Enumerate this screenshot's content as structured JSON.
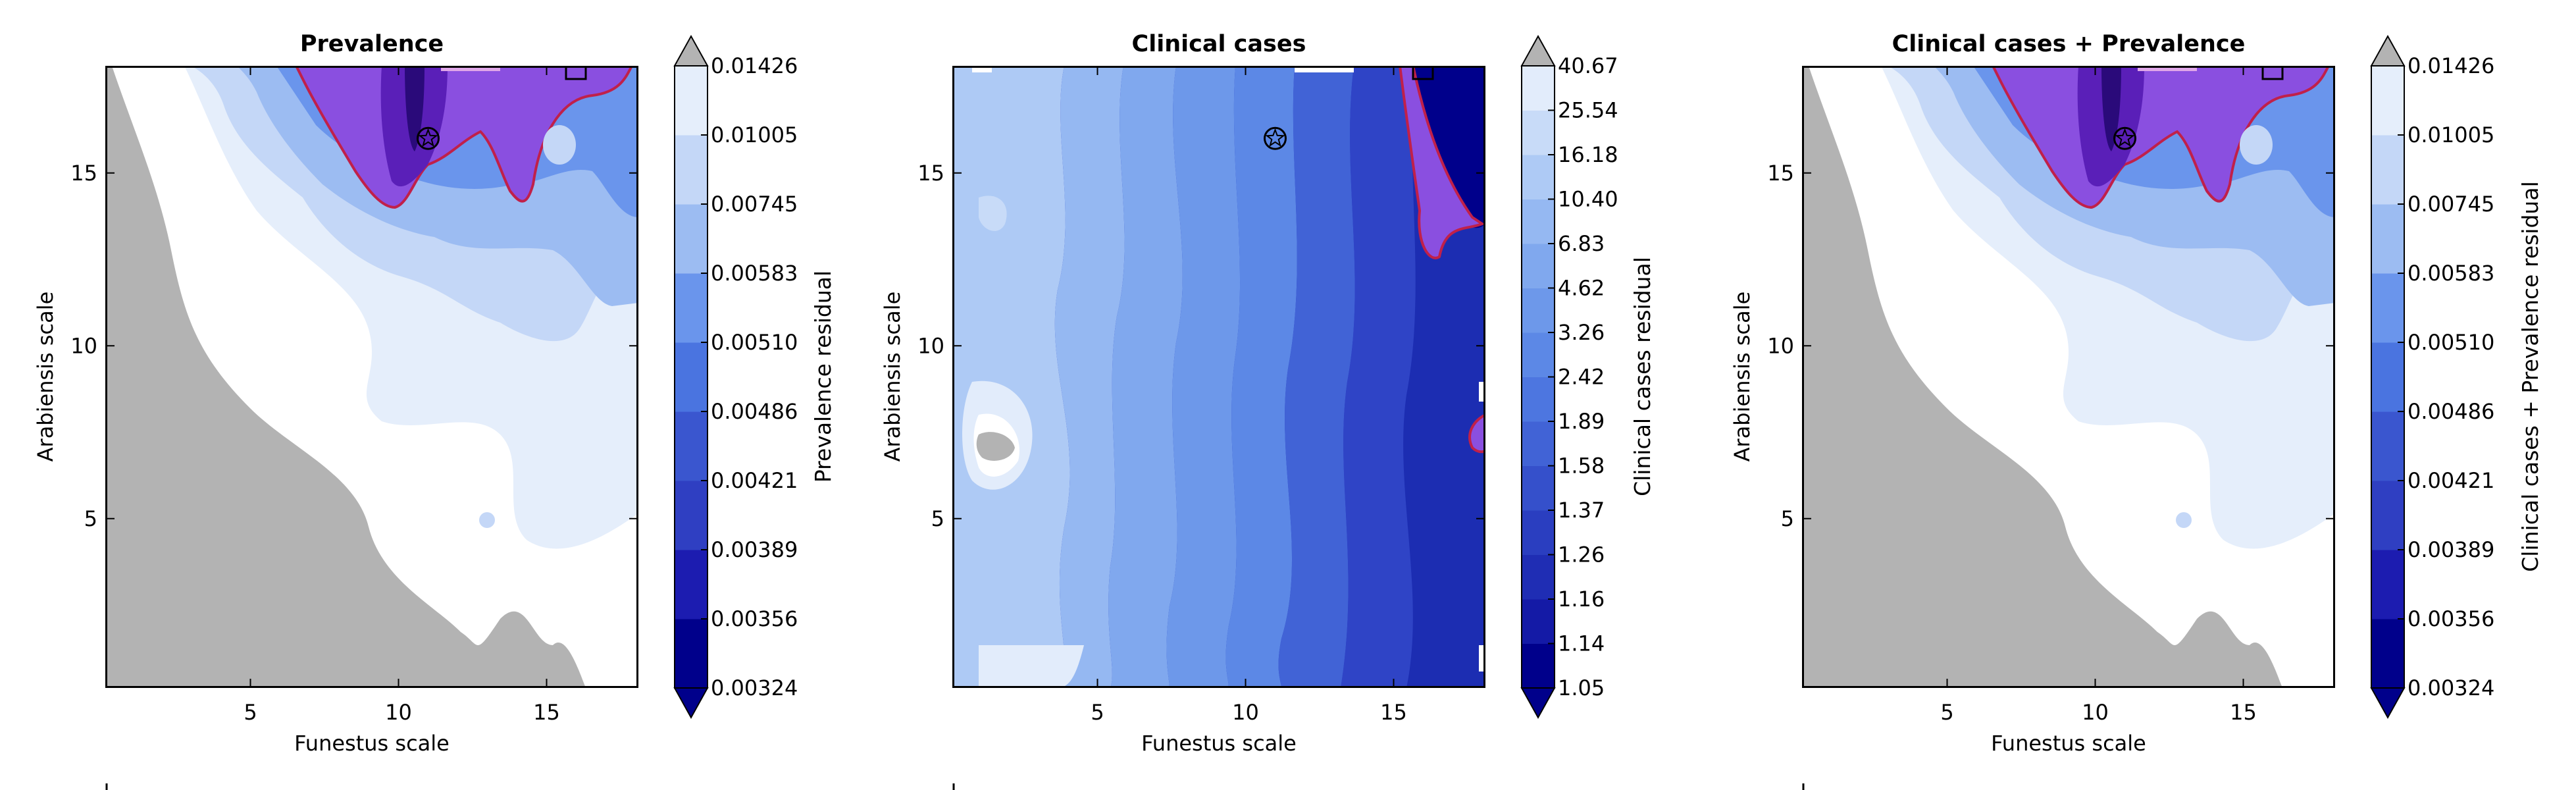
{
  "chart_data": [
    {
      "type": "heatmap",
      "title": "Prevalence",
      "xlabel": "Funestus scale",
      "ylabel": "Arabiensis scale",
      "x_ticks": [
        "5",
        "10",
        "15"
      ],
      "y_ticks": [
        "5",
        "10",
        "15"
      ],
      "xlim": [
        0.1,
        18.1
      ],
      "ylim": [
        0.1,
        18.1
      ],
      "colorbar_label": "Prevalence residual",
      "colorbar_levels": [
        "0.00324",
        "0.00356",
        "0.00389",
        "0.00421",
        "0.00486",
        "0.00510",
        "0.00583",
        "0.00745",
        "0.01005",
        "0.01426"
      ],
      "best_fit_marker": {
        "x": 11,
        "y": 16
      },
      "colors": [
        "#00008b",
        "#1c1cb0",
        "#2f3fc2",
        "#3a56cf",
        "#4a74e0",
        "#6a95ec",
        "#9cbcf2",
        "#c4d7f7",
        "#e5eefb",
        "#ffffff"
      ]
    },
    {
      "type": "heatmap",
      "title": "Clinical cases",
      "xlabel": "Funestus scale",
      "ylabel": "Arabiensis scale",
      "x_ticks": [
        "5",
        "10",
        "15"
      ],
      "y_ticks": [
        "5",
        "10",
        "15"
      ],
      "xlim": [
        0.1,
        18.1
      ],
      "ylim": [
        0.1,
        18.1
      ],
      "colorbar_label": "Clinical cases residual",
      "colorbar_levels": [
        "1.05",
        "1.14",
        "1.16",
        "1.26",
        "1.37",
        "1.58",
        "1.89",
        "2.42",
        "3.26",
        "4.62",
        "6.83",
        "10.40",
        "16.18",
        "25.54",
        "40.67"
      ],
      "best_fit_marker": {
        "x": 11,
        "y": 16
      },
      "colors": [
        "#00008b",
        "#141aa6",
        "#1f2db4",
        "#2a3ec0",
        "#3550cb",
        "#4163d6",
        "#4d76e0",
        "#5c88e6",
        "#6d98ea",
        "#80a8ee",
        "#95b8f2",
        "#aecaf5",
        "#c8dbf8",
        "#e2ecfb",
        "#ffffff"
      ]
    },
    {
      "type": "heatmap",
      "title": "Clinical cases + Prevalence",
      "xlabel": "Funestus scale",
      "ylabel": "Arabiensis scale",
      "x_ticks": [
        "5",
        "10",
        "15"
      ],
      "y_ticks": [
        "5",
        "10",
        "15"
      ],
      "xlim": [
        0.1,
        18.1
      ],
      "ylim": [
        0.1,
        18.1
      ],
      "colorbar_label": "Clinical cases + Prevalence residual",
      "colorbar_levels": [
        "0.00324",
        "0.00356",
        "0.00389",
        "0.00421",
        "0.00486",
        "0.00510",
        "0.00583",
        "0.00745",
        "0.01005",
        "0.01426"
      ],
      "best_fit_marker": {
        "x": 11,
        "y": 16
      },
      "colors": [
        "#00008b",
        "#1c1cb0",
        "#2f3fc2",
        "#3a56cf",
        "#4a74e0",
        "#6a95ec",
        "#9cbcf2",
        "#c4d7f7",
        "#e5eefb",
        "#ffffff"
      ]
    }
  ],
  "colors": {
    "nan_region": "#b3b3b3",
    "highlight_fill": "#8a4fe0",
    "highlight_deep": "#5a1fb8",
    "highlight_edge": "#c0204a"
  }
}
